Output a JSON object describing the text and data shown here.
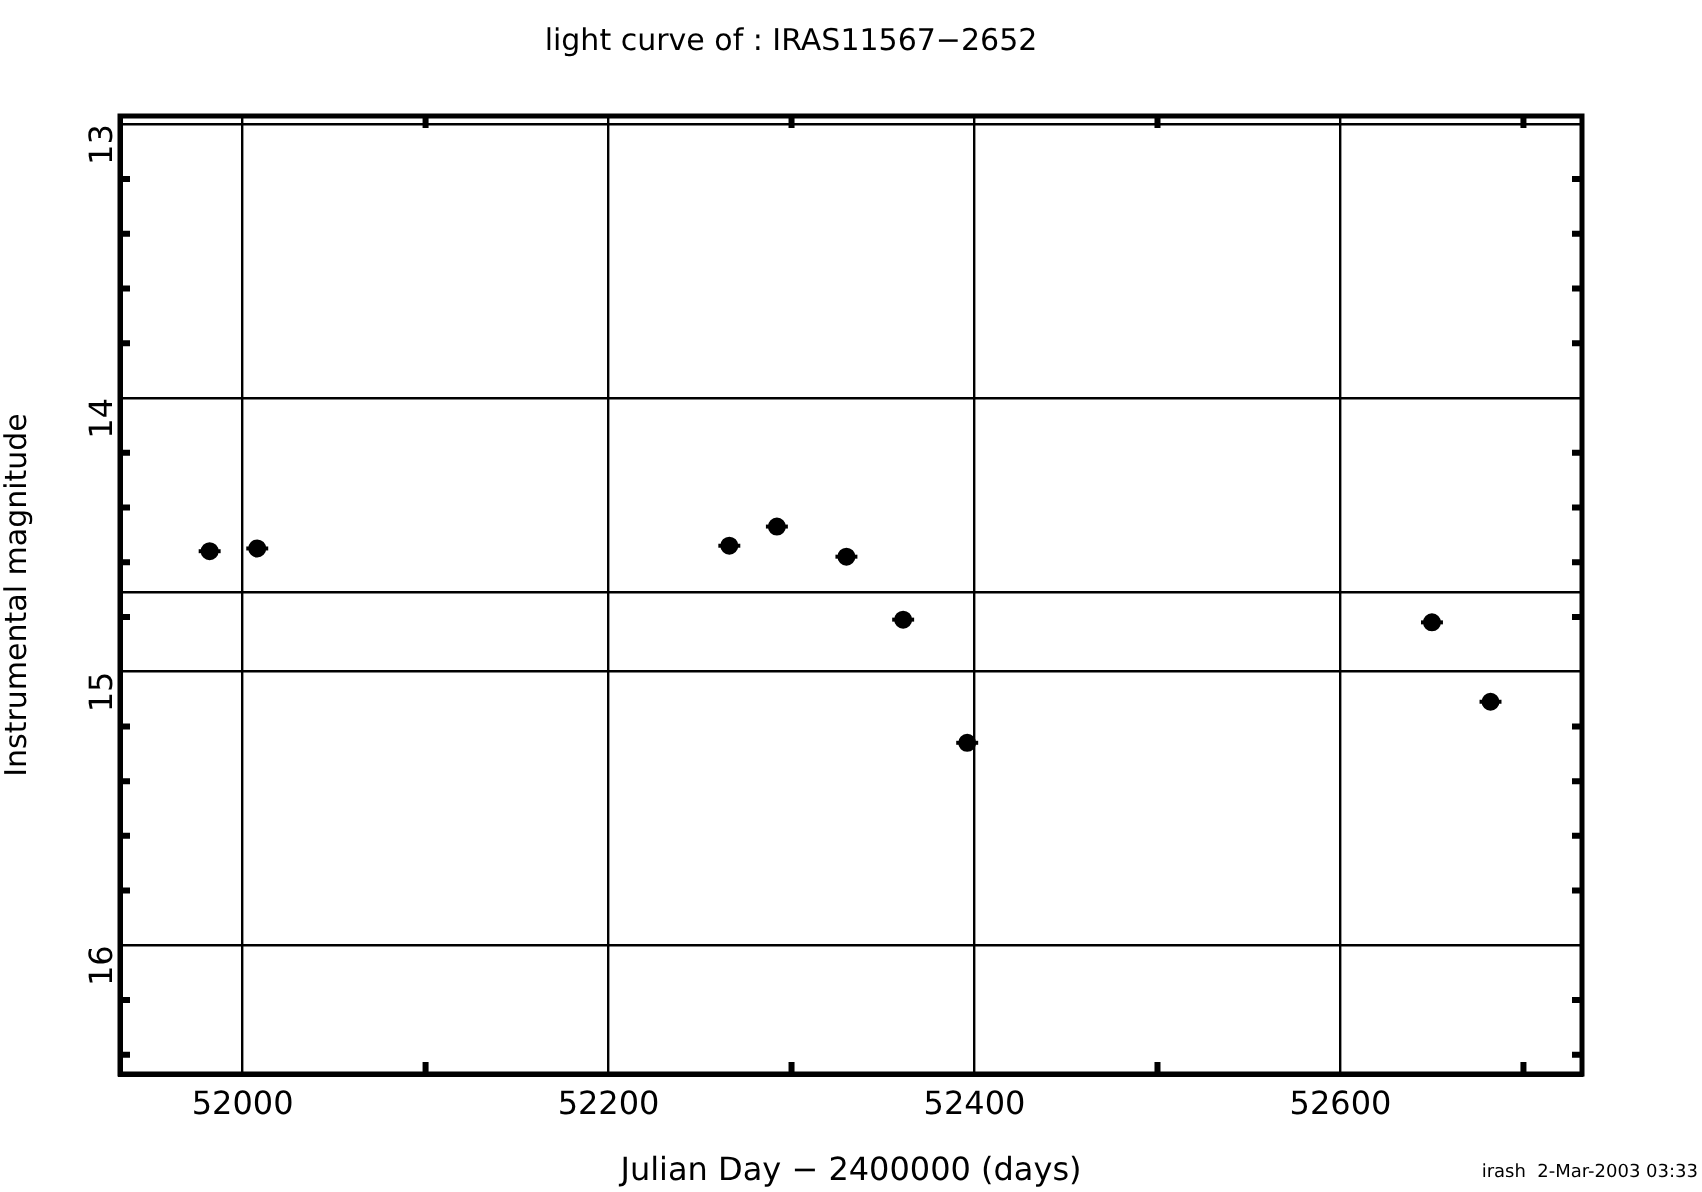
{
  "chart_data": {
    "type": "scatter",
    "title": "light curve of : IRAS11567−2652",
    "xlabel": "Julian Day − 2400000 (days)",
    "ylabel": "Instrumental magnitude",
    "annotations": [
      "irash  2-Mar-2003 03:33"
    ],
    "x": [
      51982,
      52008,
      52266,
      52292,
      52330,
      52361,
      52396,
      52650,
      52682
    ],
    "series": [
      {
        "color": "#000000",
        "values": [
          14.56,
          14.55,
          14.54,
          14.47,
          14.58,
          14.81,
          15.26,
          14.82,
          15.11
        ],
        "xerrors": [
          6,
          6,
          6,
          6,
          6,
          6,
          6,
          6,
          6
        ]
      }
    ],
    "xlim": [
      51933,
      52732
    ],
    "xticks": [
      52000,
      {
        "value": 52100,
        "label": null
      },
      52200,
      {
        "value": 52300,
        "label": null
      },
      52400,
      {
        "value": 52500,
        "label": null
      },
      52600,
      {
        "value": 52700,
        "label": null
      }
    ],
    "ylim": [
      16.47,
      12.97
    ],
    "yticks": [
      13,
      {
        "value": 13.2,
        "label": null
      },
      {
        "value": 13.4,
        "label": null
      },
      {
        "value": 13.6,
        "label": null
      },
      {
        "value": 13.8,
        "label": null
      },
      14,
      {
        "value": 14.2,
        "label": null
      },
      {
        "value": 14.4,
        "label": null
      },
      {
        "value": 14.6,
        "label": null
      },
      {
        "value": 14.8,
        "label": null
      },
      15,
      {
        "value": 15.2,
        "label": null
      },
      {
        "value": 15.4,
        "label": null
      },
      {
        "value": 15.6,
        "label": null
      },
      {
        "value": 15.8,
        "label": null
      },
      16,
      {
        "value": 16.2,
        "label": null
      },
      {
        "value": 16.4,
        "label": null
      }
    ],
    "ref_lines": [
      {
        "axis": "y",
        "value": 14.71,
        "label": null
      }
    ],
    "grid": true,
    "legend": false,
    "marker": "circle"
  }
}
